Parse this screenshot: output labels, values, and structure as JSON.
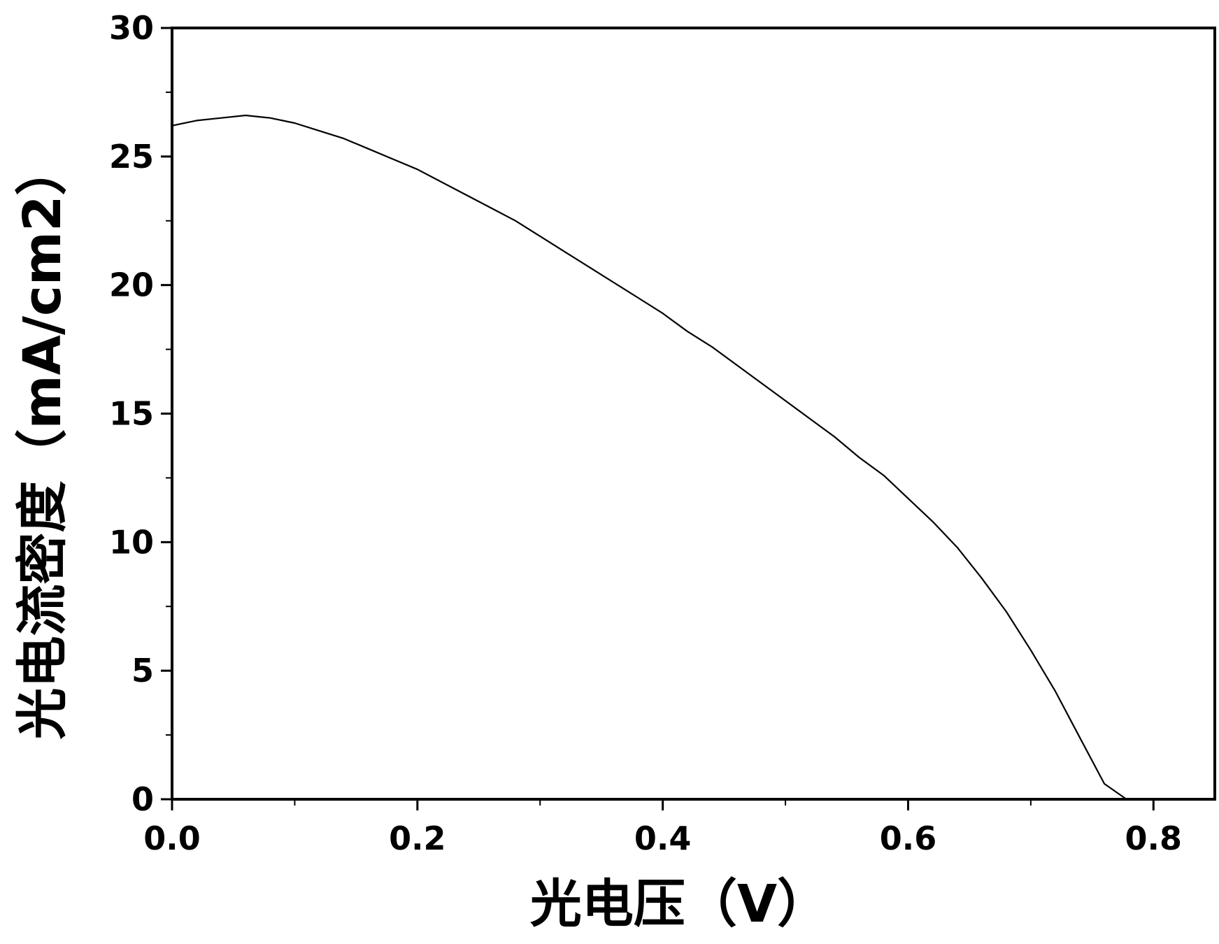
{
  "chart_data": {
    "type": "line",
    "title": "",
    "xlabel": "光电压（V）",
    "ylabel": "光电流密度（mA/cm2）",
    "xlim": [
      0.0,
      0.85
    ],
    "ylim": [
      0,
      30
    ],
    "grid": false,
    "legend": "none",
    "line_color": "#000000",
    "x_ticks": [
      0.0,
      0.2,
      0.4,
      0.6,
      0.8
    ],
    "x_tick_labels": [
      "0.0",
      "0.2",
      "0.4",
      "0.6",
      "0.8"
    ],
    "y_ticks": [
      0,
      5,
      10,
      15,
      20,
      25,
      30
    ],
    "y_tick_labels": [
      "0",
      "5",
      "10",
      "15",
      "20",
      "25",
      "30"
    ],
    "x_minor_ticks": [
      0.1,
      0.3,
      0.5,
      0.7
    ],
    "y_minor_ticks": [
      2.5,
      7.5,
      12.5,
      17.5,
      22.5,
      27.5
    ],
    "series": [
      {
        "x": [
          0.0,
          0.02,
          0.04,
          0.06,
          0.08,
          0.1,
          0.12,
          0.14,
          0.16,
          0.18,
          0.2,
          0.22,
          0.24,
          0.26,
          0.28,
          0.3,
          0.32,
          0.34,
          0.36,
          0.38,
          0.4,
          0.42,
          0.44,
          0.46,
          0.48,
          0.5,
          0.52,
          0.54,
          0.56,
          0.58,
          0.6,
          0.62,
          0.64,
          0.66,
          0.68,
          0.7,
          0.72,
          0.74,
          0.76,
          0.778
        ],
        "y": [
          26.2,
          26.4,
          26.5,
          26.6,
          26.5,
          26.3,
          26.0,
          25.7,
          25.3,
          24.9,
          24.5,
          24.0,
          23.5,
          23.0,
          22.5,
          21.9,
          21.3,
          20.7,
          20.1,
          19.5,
          18.9,
          18.2,
          17.6,
          16.9,
          16.2,
          15.5,
          14.8,
          14.1,
          13.3,
          12.6,
          11.7,
          10.8,
          9.8,
          8.6,
          7.3,
          5.8,
          4.2,
          2.4,
          0.6,
          0.0
        ]
      }
    ]
  }
}
